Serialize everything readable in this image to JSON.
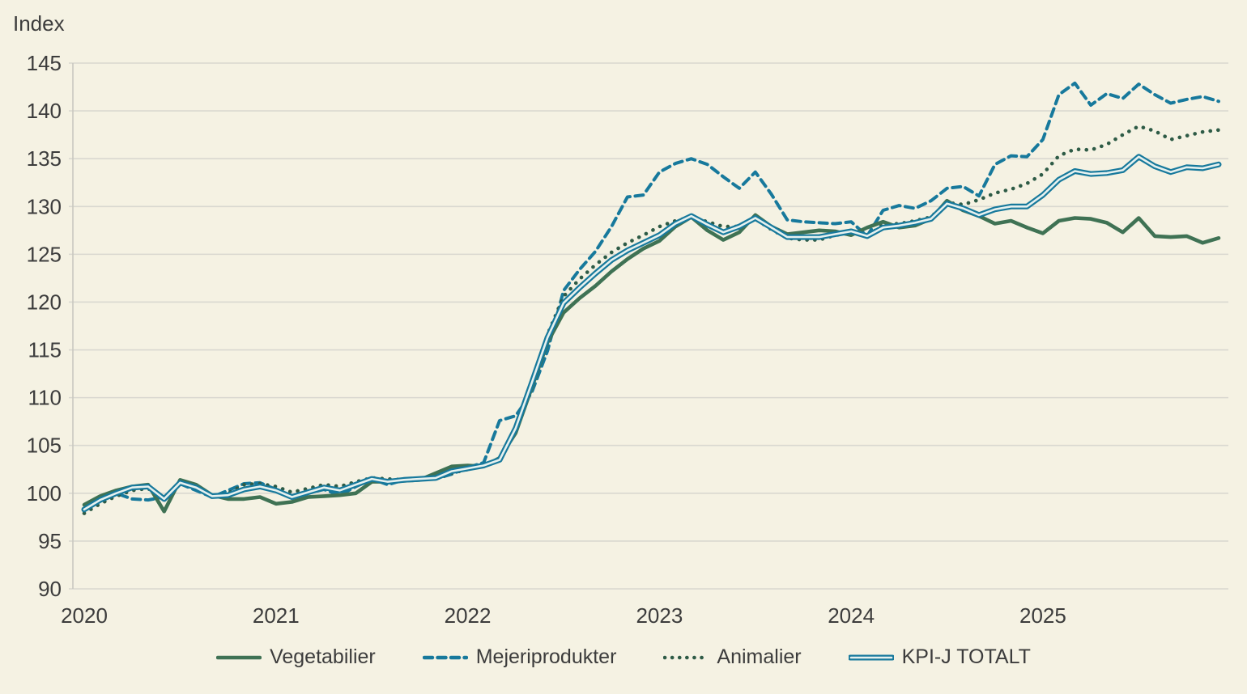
{
  "chart": {
    "y_axis_title": "Index",
    "y_ticks": [
      145,
      140,
      135,
      130,
      125,
      120,
      115,
      110,
      105,
      100,
      95,
      90
    ],
    "x_ticks": [
      "2020",
      "2021",
      "2022",
      "2023",
      "2024",
      "2025"
    ],
    "colors": {
      "background": "#f5f2e3",
      "gridline": "#d9d8d0",
      "axis": "#c9c8c0",
      "text": "#3c3c3c",
      "teal": "#17799c",
      "vegetabilier_green": "#3f7254",
      "animalier_green": "#2e5b46",
      "kpi_inner": "#e6f1ef"
    },
    "legend": [
      {
        "label": "Vegetabilier",
        "style": "solid",
        "color": "#3f7254"
      },
      {
        "label": "Mejeriprodukter",
        "style": "dashed",
        "color": "#17799c"
      },
      {
        "label": "Animalier",
        "style": "dotted",
        "color": "#2e5b46"
      },
      {
        "label": "KPI-J TOTALT",
        "style": "double",
        "color": "#17799c",
        "inner_color": "#e6f1ef"
      }
    ]
  },
  "chart_data": {
    "type": "line",
    "title": "",
    "xlabel": "",
    "ylabel": "Index",
    "ylim": [
      90,
      145
    ],
    "grid": true,
    "legend_position": "bottom",
    "x": [
      "2020-01",
      "2020-02",
      "2020-03",
      "2020-04",
      "2020-05",
      "2020-06",
      "2020-07",
      "2020-08",
      "2020-09",
      "2020-10",
      "2020-11",
      "2020-12",
      "2021-01",
      "2021-02",
      "2021-03",
      "2021-04",
      "2021-05",
      "2021-06",
      "2021-07",
      "2021-08",
      "2021-09",
      "2021-10",
      "2021-11",
      "2021-12",
      "2022-01",
      "2022-02",
      "2022-03",
      "2022-04",
      "2022-05",
      "2022-06",
      "2022-07",
      "2022-08",
      "2022-09",
      "2022-10",
      "2022-11",
      "2022-12",
      "2023-01",
      "2023-02",
      "2023-03",
      "2023-04",
      "2023-05",
      "2023-06",
      "2023-07",
      "2023-08",
      "2023-09",
      "2023-10",
      "2023-11",
      "2023-12",
      "2024-01",
      "2024-02",
      "2024-03",
      "2024-04",
      "2024-05",
      "2024-06",
      "2024-07",
      "2024-08",
      "2024-09",
      "2024-10",
      "2024-11",
      "2024-12",
      "2025-01",
      "2025-02",
      "2025-03",
      "2025-04",
      "2025-05",
      "2025-06",
      "2025-07",
      "2025-08",
      "2025-09",
      "2025-10",
      "2025-11",
      "2025-12"
    ],
    "series": [
      {
        "name": "Mejeriprodukter",
        "style": "dashed",
        "color": "#17799c",
        "width": 4,
        "values": [
          98.2,
          99.2,
          100.0,
          99.4,
          99.3,
          99.6,
          101.0,
          100.3,
          99.6,
          100.3,
          101.0,
          101.1,
          100.4,
          99.5,
          100.0,
          100.4,
          99.8,
          100.7,
          101.5,
          100.9,
          101.4,
          101.5,
          101.5,
          102.0,
          102.7,
          103.2,
          107.6,
          108.1,
          110.5,
          114.9,
          121.2,
          123.4,
          125.3,
          127.9,
          131.0,
          131.2,
          133.6,
          134.5,
          135.0,
          134.4,
          133.1,
          131.9,
          133.6,
          131.3,
          128.6,
          128.4,
          128.3,
          128.2,
          128.4,
          126.9,
          129.6,
          130.1,
          129.8,
          130.6,
          131.9,
          132.1,
          131.1,
          134.4,
          135.3,
          135.2,
          137.0,
          141.7,
          142.9,
          140.6,
          141.8,
          141.3,
          142.8,
          141.7,
          140.8,
          141.2,
          141.5,
          141.0
        ]
      },
      {
        "name": "Animalier",
        "style": "dotted",
        "color": "#2e5b46",
        "width": 4.6,
        "values": [
          97.9,
          98.9,
          99.7,
          100.3,
          100.5,
          99.4,
          101.1,
          100.6,
          99.7,
          100.0,
          100.9,
          101.0,
          100.7,
          100.1,
          100.5,
          100.9,
          100.7,
          101.2,
          101.6,
          101.5,
          101.4,
          101.6,
          101.5,
          102.1,
          102.5,
          102.9,
          103.6,
          107.0,
          111.7,
          116.6,
          120.6,
          122.4,
          123.9,
          125.2,
          126.2,
          127.0,
          127.9,
          128.5,
          128.9,
          128.4,
          127.9,
          127.9,
          128.7,
          127.6,
          126.7,
          126.5,
          126.5,
          127.0,
          127.2,
          126.9,
          128.1,
          128.2,
          128.5,
          128.9,
          130.4,
          130.2,
          130.7,
          131.4,
          131.8,
          132.4,
          133.4,
          135.3,
          136.0,
          135.9,
          136.5,
          137.5,
          138.4,
          137.9,
          137.0,
          137.4,
          137.8,
          138.0
        ]
      },
      {
        "name": "Vegetabilier",
        "style": "solid",
        "color": "#3f7254",
        "width": 4.6,
        "values": [
          98.8,
          99.7,
          100.3,
          100.7,
          100.9,
          98.1,
          101.4,
          100.9,
          99.8,
          99.4,
          99.4,
          99.6,
          98.9,
          99.1,
          99.6,
          99.7,
          99.8,
          100.0,
          101.2,
          101.2,
          101.3,
          101.4,
          102.1,
          102.8,
          102.9,
          102.8,
          103.7,
          106.3,
          111.0,
          115.8,
          118.9,
          120.4,
          121.7,
          123.2,
          124.5,
          125.6,
          126.4,
          127.9,
          128.9,
          127.5,
          126.5,
          127.3,
          129.1,
          127.9,
          127.1,
          127.3,
          127.5,
          127.4,
          127.0,
          127.8,
          128.4,
          127.8,
          128.0,
          128.7,
          130.6,
          129.6,
          129.0,
          128.2,
          128.5,
          127.8,
          127.2,
          128.5,
          128.8,
          128.7,
          128.3,
          127.3,
          128.8,
          126.9,
          126.8,
          126.9,
          126.2,
          126.7
        ]
      },
      {
        "name": "KPI-J TOTALT",
        "style": "double",
        "color": "#17799c",
        "inner_color": "#e6f1ef",
        "width": 7,
        "inner_width": 2.6,
        "values": [
          98.3,
          99.3,
          100.0,
          100.6,
          100.7,
          99.4,
          101.1,
          100.6,
          99.7,
          99.8,
          100.4,
          100.7,
          100.3,
          99.6,
          100.1,
          100.6,
          100.3,
          100.9,
          101.5,
          101.2,
          101.4,
          101.5,
          101.6,
          102.3,
          102.6,
          102.9,
          103.5,
          106.8,
          111.5,
          116.3,
          119.9,
          121.5,
          123.0,
          124.4,
          125.4,
          126.2,
          127.0,
          128.2,
          129.0,
          128.1,
          127.3,
          127.9,
          128.8,
          127.8,
          126.8,
          126.8,
          126.8,
          127.1,
          127.4,
          126.9,
          127.8,
          128.0,
          128.3,
          128.7,
          130.3,
          129.8,
          129.1,
          129.7,
          130.0,
          130.0,
          131.2,
          132.8,
          133.7,
          133.4,
          133.5,
          133.8,
          135.2,
          134.2,
          133.6,
          134.1,
          134.0,
          134.4
        ]
      }
    ]
  }
}
